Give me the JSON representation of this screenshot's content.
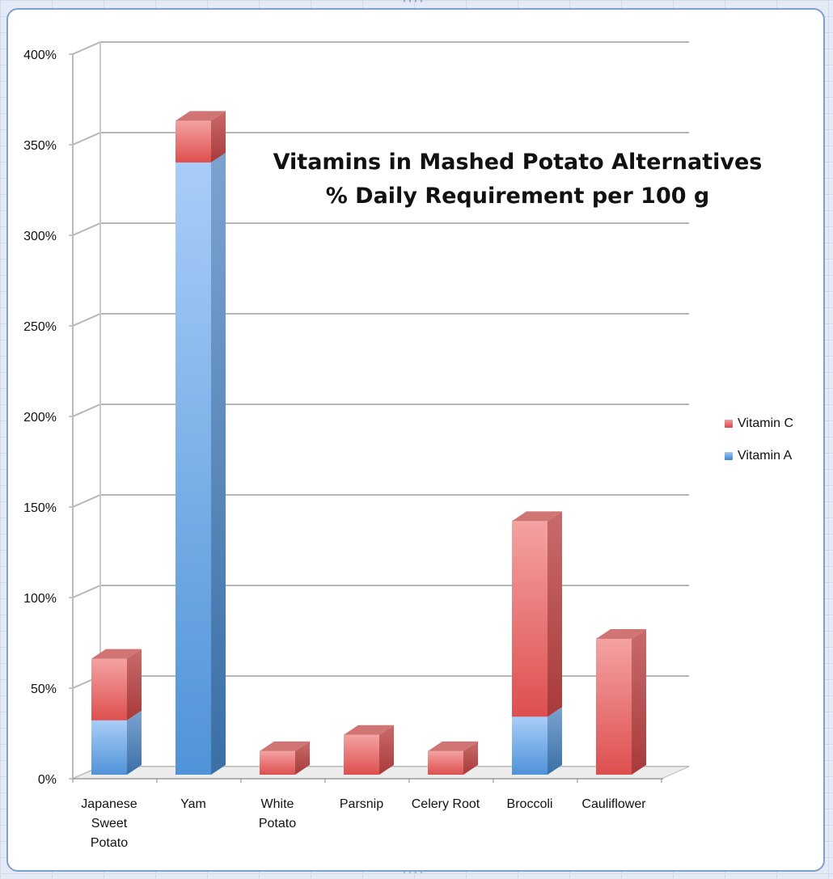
{
  "chart_data": {
    "type": "bar",
    "stacked": true,
    "style": "3d-column",
    "title": "Vitamins in Mashed Potato Alternatives",
    "subtitle": "% Daily Requirement per 100 g",
    "categories": [
      [
        "Japanese",
        "Sweet",
        "Potato"
      ],
      [
        "Yam"
      ],
      [
        "White",
        "Potato"
      ],
      [
        "Parsnip"
      ],
      [
        "Celery Root"
      ],
      [
        "Broccoli"
      ],
      [
        "Cauliflower"
      ]
    ],
    "series": [
      {
        "name": "Vitamin A",
        "color": "#4f93d8",
        "values": [
          30,
          338,
          0,
          0,
          0,
          32,
          0
        ]
      },
      {
        "name": "Vitamin C",
        "color": "#e05a5a",
        "values": [
          34,
          23,
          13,
          22,
          13,
          108,
          75
        ]
      }
    ],
    "y_ticks": [
      "0%",
      "50%",
      "100%",
      "150%",
      "200%",
      "250%",
      "300%",
      "350%",
      "400%"
    ],
    "ylim": [
      0,
      400
    ],
    "grid": true,
    "legend_position": "right",
    "legend_order": [
      "Vitamin C",
      "Vitamin A"
    ]
  }
}
